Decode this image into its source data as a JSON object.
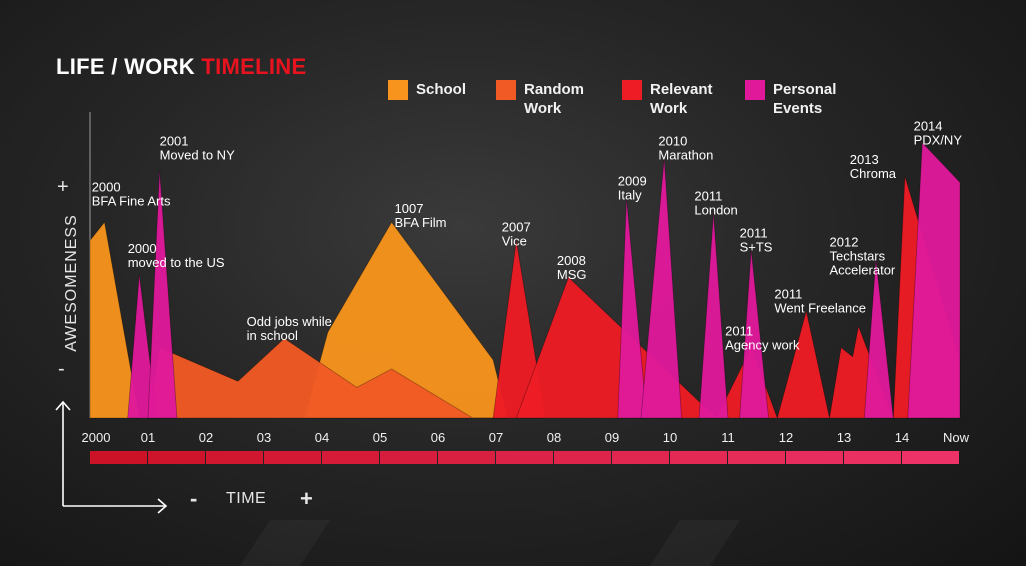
{
  "title": {
    "prefix": "LIFE / WORK",
    "highlight": "TIMELINE"
  },
  "legend": [
    {
      "name": "School",
      "color": "#f7941d"
    },
    {
      "name": "Random\nWork",
      "color": "#f15a24"
    },
    {
      "name": "Relevant\nWork",
      "color": "#ee1c25"
    },
    {
      "name": "Personal\nEvents",
      "color": "#e0199a"
    }
  ],
  "axes": {
    "y_label": "AWESOMENESS",
    "y_plus": "+",
    "y_minus": "-",
    "x_label": "TIME",
    "x_minus": "-",
    "x_plus": "+"
  },
  "chart_data": {
    "type": "area",
    "title": "LIFE / WORK TIMELINE",
    "xlabel": "TIME",
    "ylabel": "AWESOMENESS",
    "categories": [
      "2000",
      "01",
      "02",
      "03",
      "04",
      "05",
      "06",
      "07",
      "08",
      "09",
      "10",
      "11",
      "12",
      "13",
      "14",
      "Now"
    ],
    "xlim": [
      2000,
      2015
    ],
    "ylim": [
      0,
      1
    ],
    "series": [
      {
        "name": "School",
        "color": "#f7941d",
        "shapes": [
          [
            [
              2000,
              0
            ],
            [
              2000,
              0.58
            ],
            [
              2000.25,
              0.64
            ],
            [
              2000.85,
              0
            ]
          ],
          [
            [
              2003.7,
              0
            ],
            [
              2004.1,
              0.28
            ],
            [
              2005.2,
              0.64
            ],
            [
              2006.95,
              0.19
            ],
            [
              2007.2,
              0
            ]
          ]
        ]
      },
      {
        "name": "Random Work",
        "color": "#f15a24",
        "shapes": [
          [
            [
              2001,
              0
            ],
            [
              2001.2,
              0.23
            ],
            [
              2002.55,
              0.12
            ],
            [
              2003.35,
              0.26
            ],
            [
              2004.6,
              0.1
            ],
            [
              2005.2,
              0.16
            ],
            [
              2006.6,
              0
            ],
            [
              2007.2,
              0
            ]
          ]
        ]
      },
      {
        "name": "Relevant Work",
        "color": "#ee1c25",
        "shapes": [
          [
            [
              2006.95,
              0
            ],
            [
              2007.35,
              0.58
            ],
            [
              2007.85,
              0
            ]
          ],
          [
            [
              2007.35,
              0
            ],
            [
              2008.25,
              0.46
            ],
            [
              2010.8,
              0
            ],
            [
              2011.4,
              0.23
            ],
            [
              2011.85,
              0
            ]
          ],
          [
            [
              2011.85,
              0
            ],
            [
              2012.35,
              0.35
            ],
            [
              2012.75,
              0
            ],
            [
              2012.95,
              0.23
            ],
            [
              2013.15,
              0.2
            ],
            [
              2013.25,
              0.3
            ],
            [
              2013.85,
              0
            ]
          ],
          [
            [
              2013.85,
              0
            ],
            [
              2014.05,
              0.79
            ],
            [
              2015,
              0.19
            ],
            [
              2015,
              0
            ]
          ]
        ]
      },
      {
        "name": "Personal Events",
        "color": "#e0199a",
        "shapes": [
          [
            [
              2000.65,
              0
            ],
            [
              2000.85,
              0.47
            ],
            [
              2001.15,
              0
            ]
          ],
          [
            [
              2001,
              0
            ],
            [
              2001.2,
              0.81
            ],
            [
              2001.5,
              0
            ]
          ],
          [
            [
              2009.1,
              0
            ],
            [
              2009.25,
              0.72
            ],
            [
              2009.6,
              0
            ]
          ],
          [
            [
              2009.5,
              0
            ],
            [
              2009.9,
              0.85
            ],
            [
              2010.2,
              0
            ]
          ],
          [
            [
              2010.5,
              0
            ],
            [
              2010.75,
              0.67
            ],
            [
              2011,
              0
            ]
          ],
          [
            [
              2011.2,
              0
            ],
            [
              2011.4,
              0.55
            ],
            [
              2011.7,
              0
            ]
          ],
          [
            [
              2013.35,
              0
            ],
            [
              2013.55,
              0.52
            ],
            [
              2013.85,
              0
            ]
          ],
          [
            [
              2014.1,
              0
            ],
            [
              2014.35,
              0.9
            ],
            [
              2015,
              0.77
            ],
            [
              2015,
              0
            ]
          ]
        ]
      }
    ],
    "annotations": [
      {
        "text": "2000\nBFA Fine Arts",
        "x": 2000.03,
        "y": 0.74
      },
      {
        "text": "2000\nmoved to the US",
        "x": 2000.65,
        "y": 0.54
      },
      {
        "text": "2001\nMoved to NY",
        "x": 2001.2,
        "y": 0.89
      },
      {
        "text": "Odd jobs while\nin school",
        "x": 2002.7,
        "y": 0.3
      },
      {
        "text": "1007\nBFA Film",
        "x": 2005.25,
        "y": 0.67
      },
      {
        "text": "2007\nVice",
        "x": 2007.1,
        "y": 0.61
      },
      {
        "text": "2008\nMSG",
        "x": 2008.05,
        "y": 0.5
      },
      {
        "text": "2009\nItaly",
        "x": 2009.1,
        "y": 0.76
      },
      {
        "text": "2010\nMarathon",
        "x": 2009.8,
        "y": 0.89
      },
      {
        "text": "2011\nLondon",
        "x": 2010.42,
        "y": 0.71
      },
      {
        "text": "2011\nS+TS",
        "x": 2011.2,
        "y": 0.59
      },
      {
        "text": "2011\nAgency work",
        "x": 2010.95,
        "y": 0.27
      },
      {
        "text": "2011\nWent Freelance",
        "x": 2011.8,
        "y": 0.39
      },
      {
        "text": "2012\nTechstars\nAccelerator",
        "x": 2012.75,
        "y": 0.56
      },
      {
        "text": "2013\nChroma",
        "x": 2013.1,
        "y": 0.83
      },
      {
        "text": "2014\nPDX/NY",
        "x": 2014.2,
        "y": 0.94
      }
    ],
    "legend": "top",
    "grid": false
  }
}
